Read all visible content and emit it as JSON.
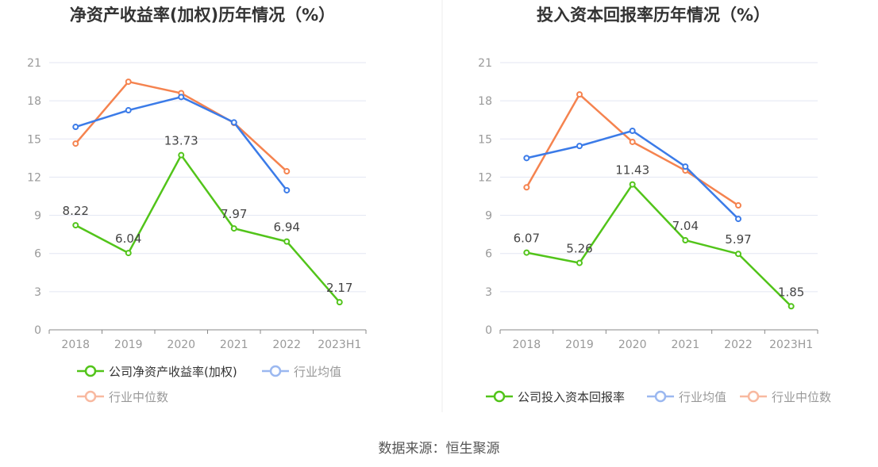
{
  "chart_data": [
    {
      "type": "line",
      "title": "净资产收益率(加权)历年情况（%）",
      "categories": [
        "2018",
        "2019",
        "2020",
        "2021",
        "2022",
        "2023H1"
      ],
      "ylim": [
        0,
        21
      ],
      "yticks": [
        0,
        3,
        6,
        9,
        12,
        15,
        18,
        21
      ],
      "grid": true,
      "legend_position": "bottom",
      "series": [
        {
          "name": "公司净资产收益率(加权)",
          "color": "#52c41a",
          "values": [
            8.22,
            6.04,
            13.73,
            7.97,
            6.94,
            2.17
          ],
          "labels": true
        },
        {
          "name": "行业均值",
          "color": "#3b7be8",
          "legend_color": "#9bb8f0",
          "values": [
            15.95,
            17.26,
            18.3,
            16.3,
            10.97,
            null
          ]
        },
        {
          "name": "行业中位数",
          "color": "#f5834f",
          "legend_color": "#f8b9a0",
          "values": [
            14.64,
            19.5,
            18.6,
            16.26,
            12.46,
            null
          ]
        }
      ]
    },
    {
      "type": "line",
      "title": "投入资本回报率历年情况（%）",
      "categories": [
        "2018",
        "2019",
        "2020",
        "2021",
        "2022",
        "2023H1"
      ],
      "ylim": [
        0,
        21
      ],
      "yticks": [
        0,
        3,
        6,
        9,
        12,
        15,
        18,
        21
      ],
      "grid": true,
      "legend_position": "bottom",
      "series": [
        {
          "name": "公司投入资本回报率",
          "color": "#52c41a",
          "values": [
            6.07,
            5.26,
            11.43,
            7.04,
            5.97,
            1.85
          ],
          "labels": true
        },
        {
          "name": "行业均值",
          "color": "#3b7be8",
          "legend_color": "#9bb8f0",
          "values": [
            13.5,
            14.45,
            15.64,
            12.83,
            8.72,
            null
          ]
        },
        {
          "name": "行业中位数",
          "color": "#f5834f",
          "legend_color": "#f8b9a0",
          "values": [
            11.2,
            18.5,
            14.77,
            12.52,
            9.78,
            null
          ]
        }
      ]
    }
  ],
  "source": "数据来源：恒生聚源"
}
